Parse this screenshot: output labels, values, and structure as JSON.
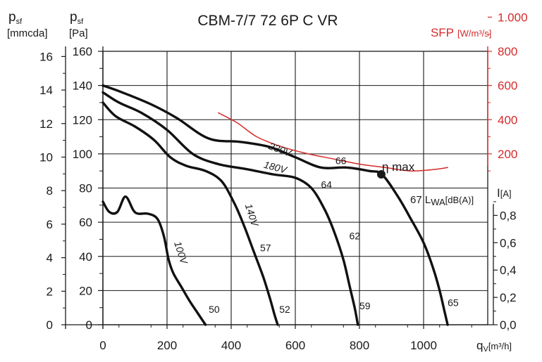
{
  "chart_data": {
    "type": "line",
    "title": "CBM-7/7 72 6P C VR",
    "x_axis": {
      "label": "q",
      "label_sub": "V",
      "unit": "[m³/h]",
      "range": [
        0,
        1200
      ],
      "ticks": [
        0,
        200,
        400,
        600,
        800,
        1000
      ]
    },
    "y_axis_pa": {
      "label": "p",
      "label_sub": "sf",
      "unit": "[Pa]",
      "range": [
        0,
        160
      ],
      "ticks": [
        0,
        20,
        40,
        60,
        80,
        100,
        120,
        140,
        160
      ]
    },
    "y_axis_mmcda": {
      "label": "p",
      "label_sub": "sf",
      "unit": "[mmcda]",
      "ticks": [
        0,
        2,
        4,
        6,
        8,
        10,
        12,
        14,
        16
      ]
    },
    "y_axis_sfp": {
      "label": "SFP",
      "unit": "[W/m³/s]",
      "ticks": [
        "200",
        "400",
        "600",
        "800",
        "1.000"
      ]
    },
    "y_axis_current": {
      "label": "I",
      "unit": "[A]",
      "ticks": [
        "0,0",
        "0,2",
        "0,4",
        "0,6",
        "0,8"
      ]
    },
    "grid": true,
    "series": [
      {
        "name": "230V",
        "color": "#111111",
        "x": [
          0,
          60,
          150,
          230,
          330,
          430,
          520,
          600,
          680,
          760,
          830,
          870,
          920,
          960,
          1000,
          1030,
          1050,
          1065,
          1075
        ],
        "y": [
          140,
          136,
          129,
          121,
          109,
          107,
          104,
          98,
          92,
          92,
          90,
          88,
          75,
          62,
          48,
          33,
          20,
          8,
          0
        ]
      },
      {
        "name": "180V",
        "color": "#111111",
        "x": [
          0,
          50,
          120,
          200,
          280,
          360,
          450,
          530,
          600,
          650,
          690,
          720,
          750,
          770,
          785,
          795
        ],
        "y": [
          136,
          130,
          124,
          114,
          100,
          94,
          91,
          88,
          86,
          80,
          68,
          55,
          38,
          22,
          10,
          0
        ]
      },
      {
        "name": "140V",
        "color": "#111111",
        "x": [
          0,
          40,
          100,
          160,
          210,
          260,
          320,
          370,
          410,
          440,
          470,
          500,
          520,
          535,
          545
        ],
        "y": [
          130,
          122,
          116,
          108,
          98,
          93,
          90,
          84,
          71,
          58,
          43,
          28,
          16,
          6,
          0
        ]
      },
      {
        "name": "100V",
        "color": "#111111",
        "x": [
          0,
          20,
          45,
          70,
          95,
          110,
          140,
          170,
          190,
          205,
          220,
          245,
          270,
          295,
          320
        ],
        "y": [
          72,
          66,
          66,
          75,
          67,
          65,
          65,
          62,
          52,
          38,
          30,
          22,
          14,
          7,
          0
        ]
      },
      {
        "name": "SFP",
        "color": "#d42b2b",
        "x": [
          360,
          420,
          480,
          560,
          640,
          720,
          800,
          880,
          960,
          1040,
          1075
        ],
        "y": [
          124,
          118,
          110,
          104,
          100,
          97,
          94,
          92,
          90,
          91,
          92
        ]
      }
    ],
    "annotations": [
      {
        "text": "230V",
        "x": 515,
        "y": 103,
        "rotate": 20
      },
      {
        "text": "180V",
        "x": 500,
        "y": 92,
        "rotate": 15
      },
      {
        "text": "140V",
        "x": 443,
        "y": 70,
        "rotate": 72
      },
      {
        "text": "100V",
        "x": 222,
        "y": 48,
        "rotate": 72
      },
      {
        "text": "66",
        "x": 725,
        "y": 94,
        "rotate": 0
      },
      {
        "text": "64",
        "x": 680,
        "y": 80,
        "rotate": 0
      },
      {
        "text": "62",
        "x": 768,
        "y": 50,
        "rotate": 0
      },
      {
        "text": "57",
        "x": 490,
        "y": 43,
        "rotate": 0
      },
      {
        "text": "50",
        "x": 330,
        "y": 7,
        "rotate": 0
      },
      {
        "text": "52",
        "x": 550,
        "y": 7,
        "rotate": 0
      },
      {
        "text": "59",
        "x": 800,
        "y": 9,
        "rotate": 0
      },
      {
        "text": "65",
        "x": 1075,
        "y": 11,
        "rotate": 0
      }
    ],
    "eta_max": {
      "label": "η max",
      "x": 868,
      "y": 88
    },
    "lwa_label": {
      "prefix": "67 L",
      "sub": "WA",
      "suffix": "[dB(A)]"
    }
  }
}
